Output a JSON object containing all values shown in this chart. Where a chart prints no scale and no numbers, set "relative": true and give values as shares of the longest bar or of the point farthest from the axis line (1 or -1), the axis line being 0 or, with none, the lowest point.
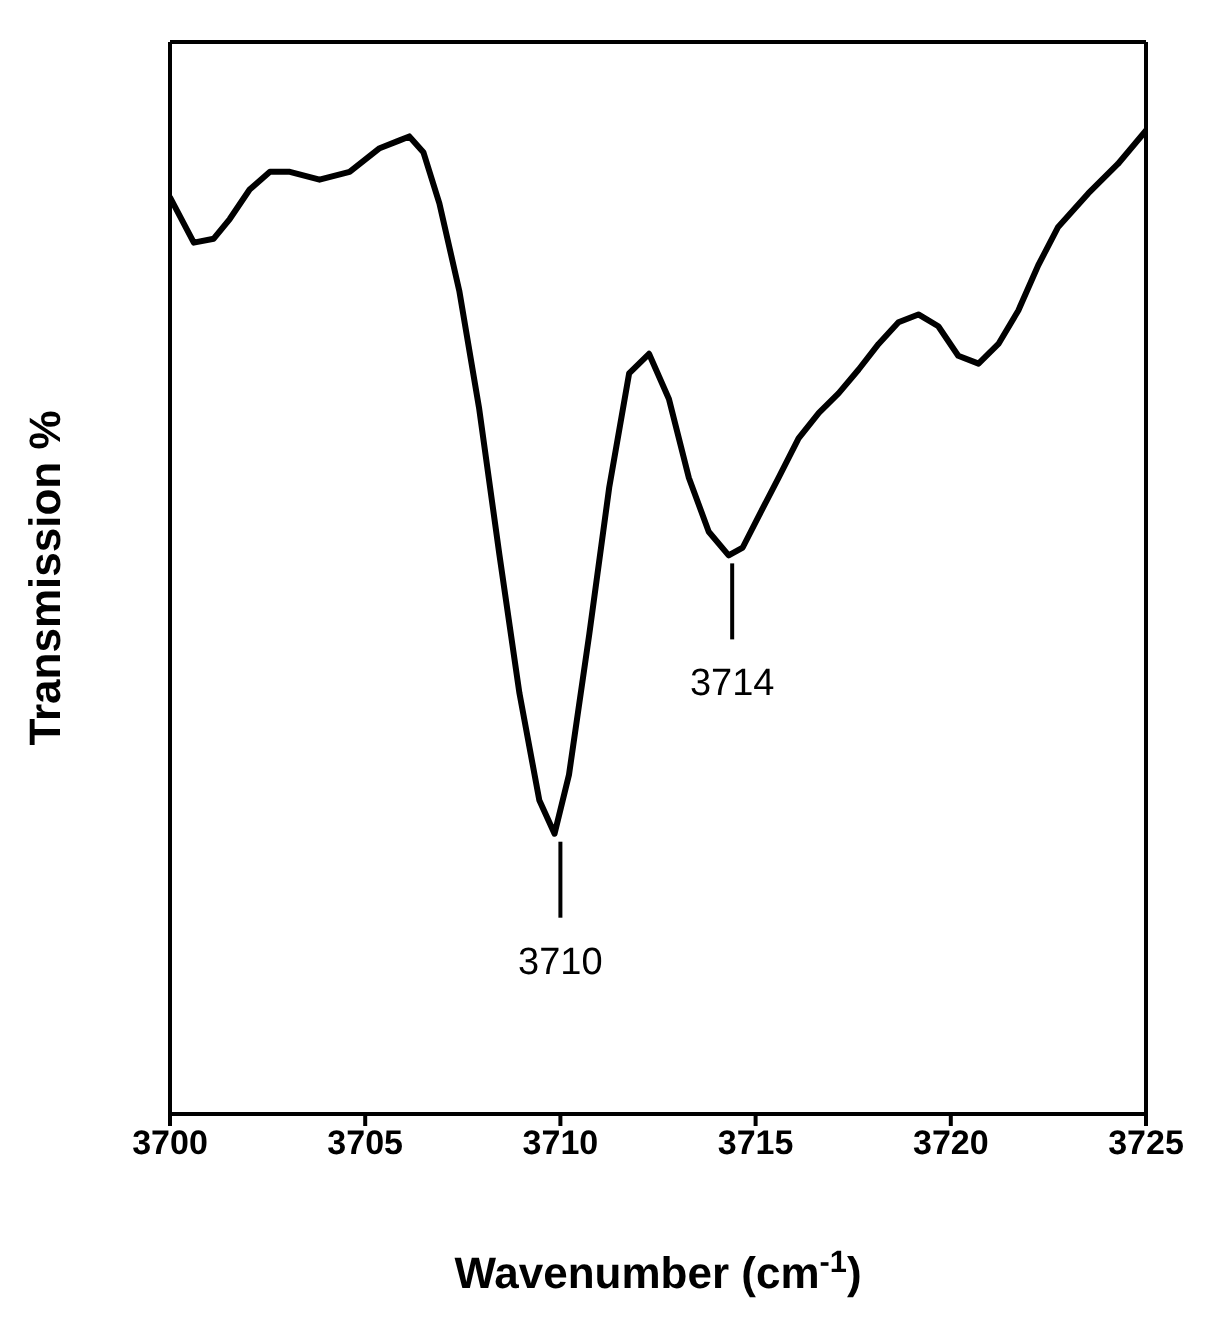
{
  "chart_data": {
    "type": "line",
    "relative": true,
    "xlabel": "Wavenumber (cm$^{-1}$)",
    "ylabel": "Transmission %",
    "xlim": [
      3700,
      3725
    ],
    "xticks": [
      3700,
      3705,
      3710,
      3715,
      3720,
      3725
    ],
    "marker": "none",
    "line_style": "solid",
    "series": [
      {
        "color": "#000000",
        "x": [
          3700.0,
          3700.61,
          3701.12,
          3701.53,
          3702.04,
          3702.56,
          3703.07,
          3703.83,
          3704.6,
          3705.37,
          3705.88,
          3706.13,
          3706.49,
          3706.9,
          3707.41,
          3707.92,
          3708.44,
          3708.95,
          3709.46,
          3709.85,
          3710.22,
          3710.74,
          3711.25,
          3711.76,
          3712.27,
          3712.78,
          3713.29,
          3713.8,
          3714.31,
          3714.67,
          3715.08,
          3715.59,
          3716.1,
          3716.62,
          3717.13,
          3717.64,
          3718.15,
          3718.66,
          3719.17,
          3719.68,
          3720.19,
          3720.71,
          3721.22,
          3721.73,
          3722.24,
          3722.75,
          3723.52,
          3724.28,
          3725.0
        ],
        "values": [
          0.932,
          0.886,
          0.89,
          0.91,
          0.94,
          0.958,
          0.958,
          0.95,
          0.958,
          0.982,
          0.99,
          0.994,
          0.978,
          0.926,
          0.837,
          0.717,
          0.568,
          0.428,
          0.319,
          0.285,
          0.345,
          0.488,
          0.637,
          0.753,
          0.773,
          0.727,
          0.647,
          0.592,
          0.568,
          0.576,
          0.608,
          0.647,
          0.687,
          0.713,
          0.733,
          0.757,
          0.783,
          0.805,
          0.813,
          0.801,
          0.771,
          0.763,
          0.783,
          0.817,
          0.863,
          0.902,
          0.936,
          0.966,
          1.0
        ]
      }
    ],
    "annotations": [
      {
        "text": "3710",
        "x": 3710,
        "y": 0.285
      },
      {
        "text": "3714",
        "x": 3714.4,
        "y": 0.568
      }
    ]
  }
}
